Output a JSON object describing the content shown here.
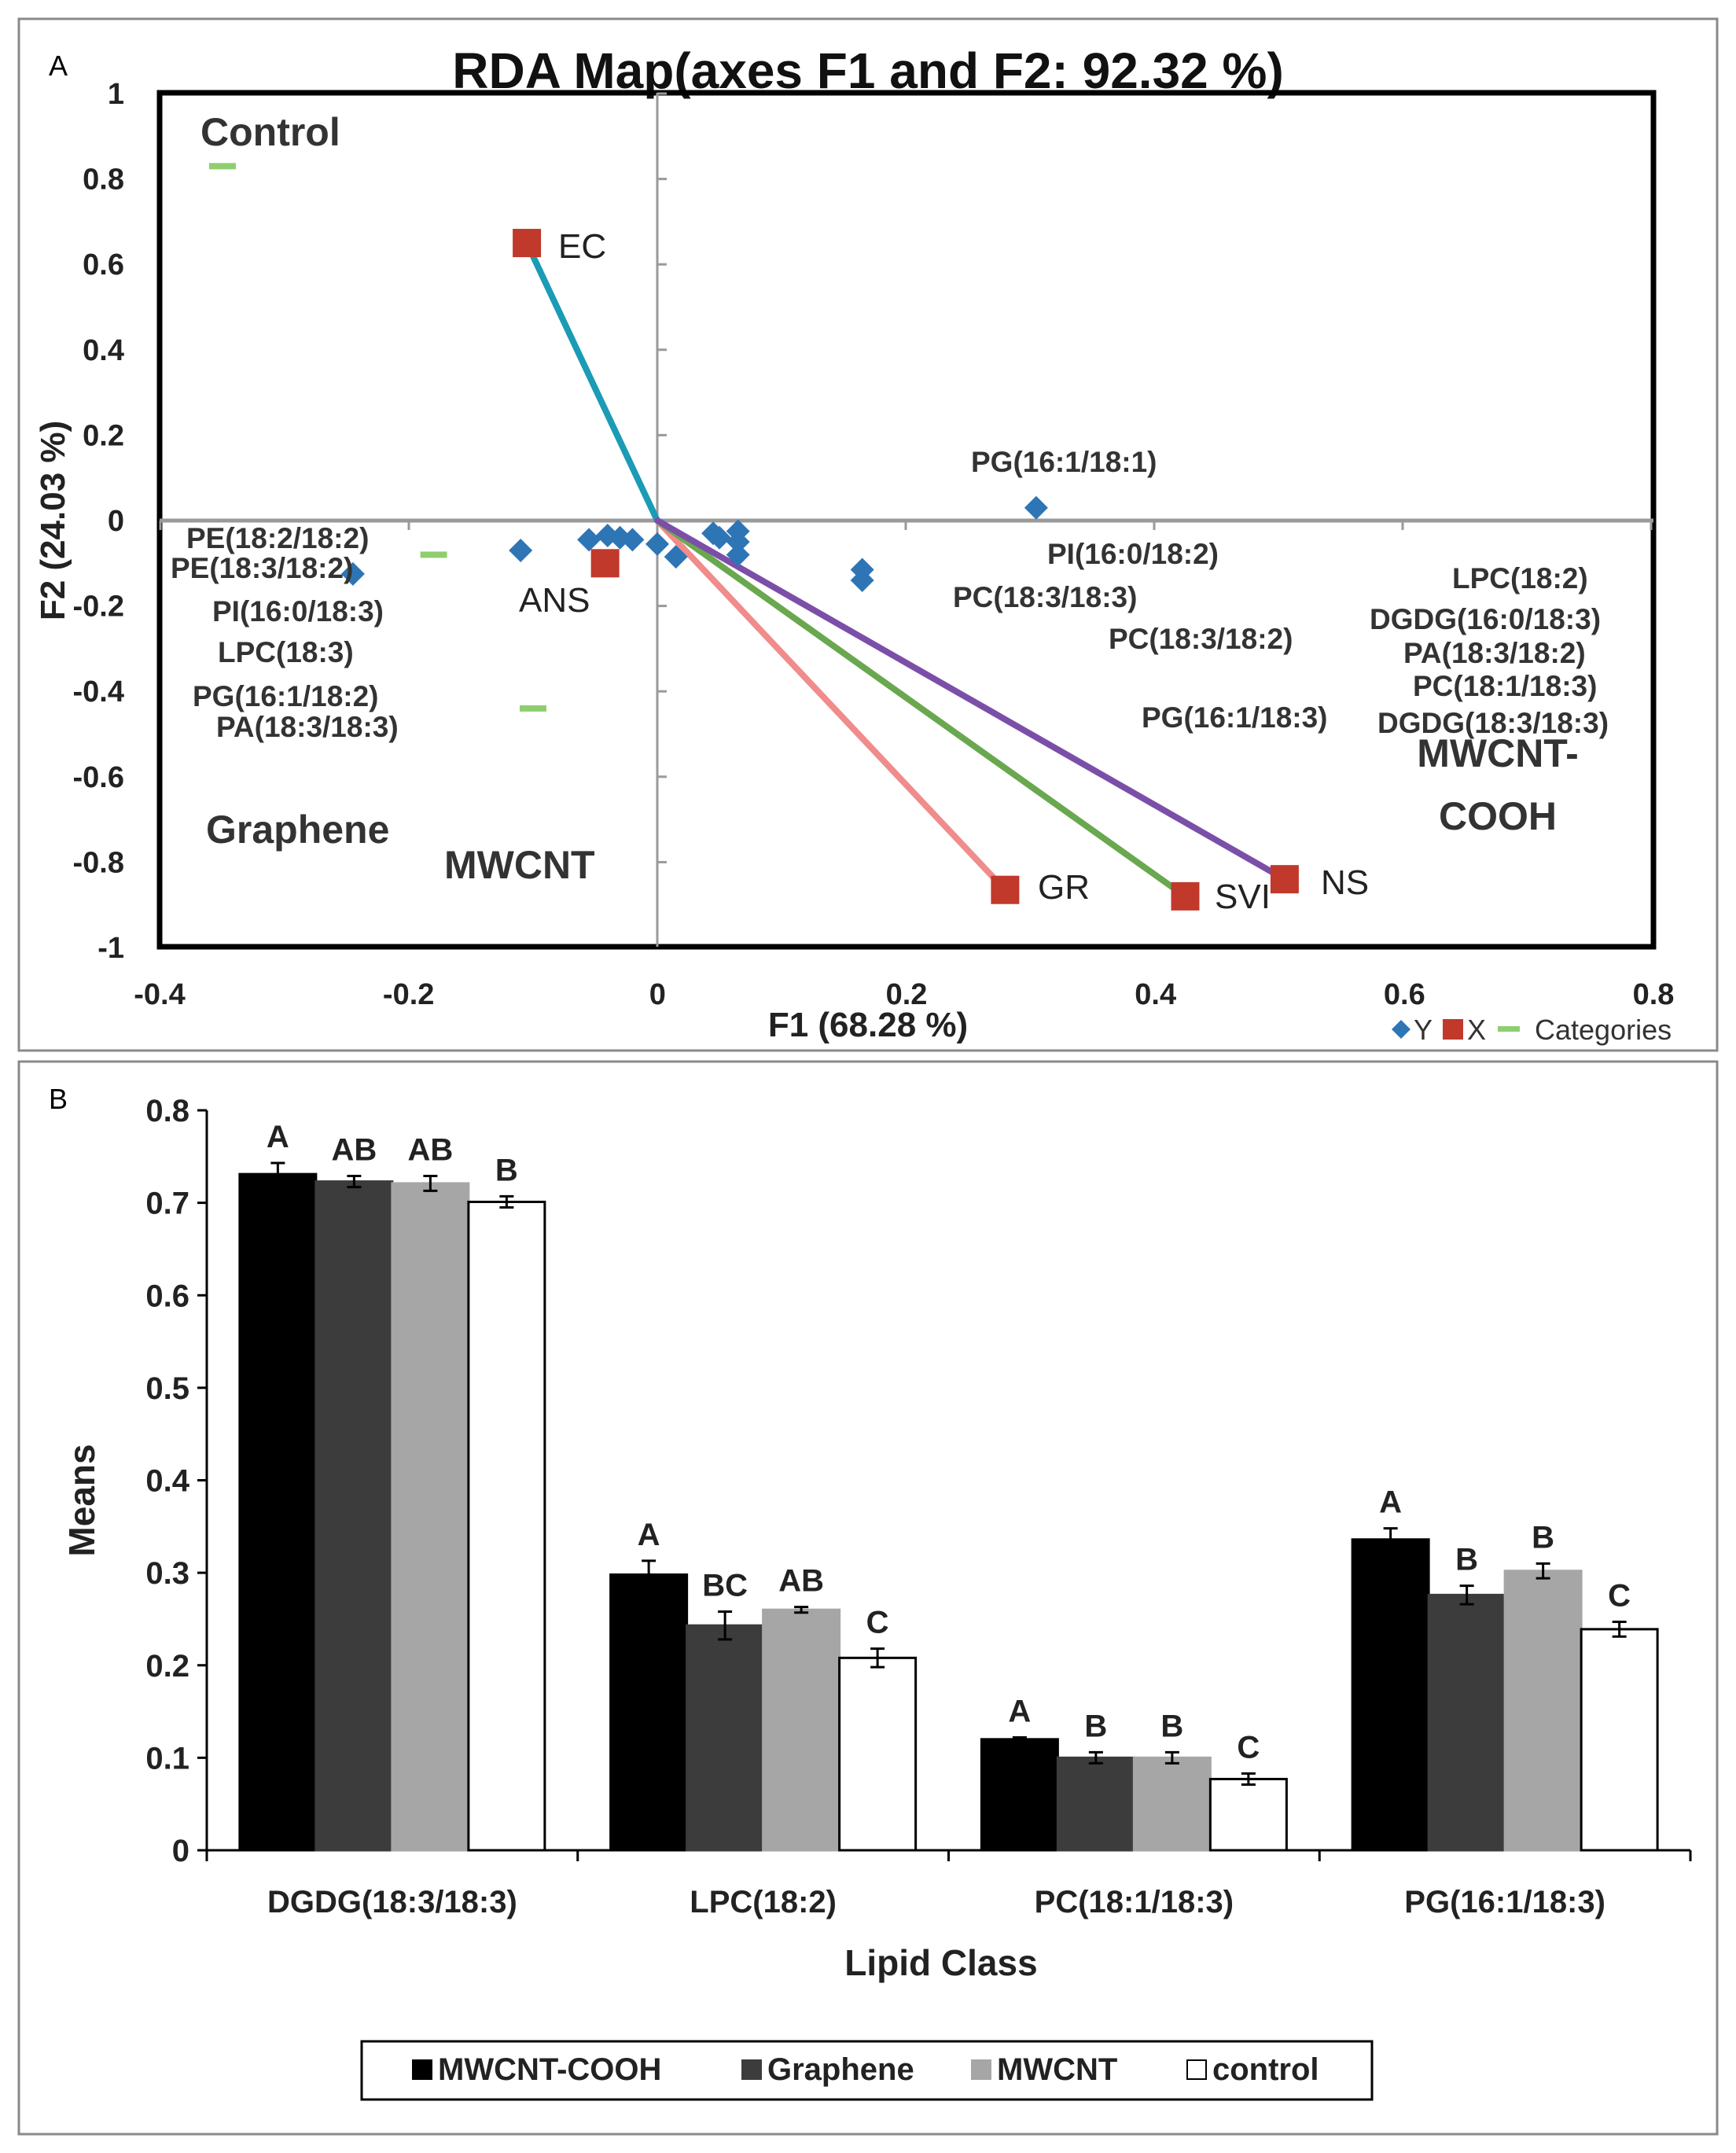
{
  "chart_data": [
    {
      "type": "scatter",
      "panel_label": "A",
      "title": "RDA Map(axes F1 and F2: 92.32 %)",
      "xlabel": "F1 (68.28 %)",
      "ylabel": "F2 (24.03 %)",
      "xlim": [
        -0.4,
        0.8
      ],
      "ylim": [
        -1,
        1
      ],
      "xticks": [
        -0.4,
        -0.2,
        0,
        0.2,
        0.4,
        0.6,
        0.8
      ],
      "yticks": [
        1,
        0.8,
        0.6,
        0.4,
        0.2,
        0,
        -0.2,
        -0.4,
        -0.6,
        -0.8,
        -1
      ],
      "xtick_labels": [
        "-0.4",
        "-0.2",
        "0",
        "0.2",
        "0.4",
        "0.6",
        "0.8"
      ],
      "ytick_labels": [
        "1",
        "0.8",
        "0.6",
        "0.4",
        "0.2",
        "0",
        "-0.2",
        "-0.4",
        "-0.6",
        "-0.8",
        "-1"
      ],
      "legend": [
        {
          "name": "Y",
          "color": "#2e75b6",
          "symbol": "diamond"
        },
        {
          "name": "X",
          "color": "#c0392b",
          "symbol": "square"
        },
        {
          "name": "Categories",
          "color": "#8fce6f",
          "symbol": "dash"
        }
      ],
      "y_points": [
        {
          "x": -0.245,
          "y": -0.125
        },
        {
          "x": -0.11,
          "y": -0.07
        },
        {
          "x": -0.055,
          "y": -0.045
        },
        {
          "x": -0.04,
          "y": -0.035
        },
        {
          "x": -0.03,
          "y": -0.04
        },
        {
          "x": -0.02,
          "y": -0.045
        },
        {
          "x": 0.0,
          "y": -0.055
        },
        {
          "x": 0.015,
          "y": -0.085
        },
        {
          "x": 0.045,
          "y": -0.03
        },
        {
          "x": 0.05,
          "y": -0.04
        },
        {
          "x": 0.065,
          "y": -0.025
        },
        {
          "x": 0.065,
          "y": -0.05
        },
        {
          "x": 0.065,
          "y": -0.08
        },
        {
          "x": 0.165,
          "y": -0.115
        },
        {
          "x": 0.165,
          "y": -0.14
        },
        {
          "x": 0.305,
          "y": 0.03
        }
      ],
      "x_points": [
        {
          "label": "EC",
          "x": -0.105,
          "y": 0.65
        },
        {
          "label": "ANS",
          "x": -0.042,
          "y": -0.1
        },
        {
          "label": "GR",
          "x": 0.28,
          "y": -0.865
        },
        {
          "label": "SVI",
          "x": 0.425,
          "y": -0.88
        },
        {
          "label": "NS",
          "x": 0.505,
          "y": -0.84
        }
      ],
      "vectors": [
        {
          "to": "EC",
          "color": "#1b9bb5"
        },
        {
          "to": "GR",
          "color": "#f08c8c"
        },
        {
          "to": "SVI",
          "color": "#6aa84f"
        },
        {
          "to": "NS",
          "color": "#7b4fa8"
        }
      ],
      "categories_points": [
        {
          "x": -0.35,
          "y": 0.83
        },
        {
          "x": -0.18,
          "y": -0.08
        },
        {
          "x": -0.1,
          "y": -0.44
        }
      ],
      "category_labels": [
        "Control",
        "Graphene",
        "MWCNT",
        "MWCNT-",
        "COOH"
      ],
      "variable_labels": [
        "PG(16:1/18:1)",
        "PI(16:0/18:2)",
        "PC(18:3/18:3)",
        "PC(18:3/18:2)",
        "PG(16:1/18:3)",
        "PE(18:2/18:2)",
        "PE(18:3/18:2)",
        "PI(16:0/18:3)",
        "LPC(18:3)",
        "PG(16:1/18:2)",
        "PA(18:3/18:3)",
        "LPC(18:2)",
        "DGDG(16:0/18:3)",
        "PA(18:3/18:2)",
        "PC(18:1/18:3)",
        "DGDG(18:3/18:3)"
      ]
    },
    {
      "type": "bar",
      "panel_label": "B",
      "xlabel": "Lipid Class",
      "ylabel": "Means",
      "ylim": [
        0,
        0.8
      ],
      "yticks": [
        0,
        0.1,
        0.2,
        0.3,
        0.4,
        0.5,
        0.6,
        0.7,
        0.8
      ],
      "ytick_labels": [
        "0",
        "0.1",
        "0.2",
        "0.3",
        "0.4",
        "0.5",
        "0.6",
        "0.7",
        "0.8"
      ],
      "categories": [
        "DGDG(18:3/18:3)",
        "LPC(18:2)",
        "PC(18:1/18:3)",
        "PG(16:1/18:3)"
      ],
      "series": [
        {
          "name": "MWCNT-COOH",
          "color": "#000000",
          "values": [
            0.731,
            0.298,
            0.12,
            0.336
          ],
          "errors": [
            0.012,
            0.015,
            0.002,
            0.012
          ],
          "letters": [
            "A",
            "A",
            "A",
            "A"
          ]
        },
        {
          "name": "Graphene",
          "color": "#3c3c3c",
          "values": [
            0.723,
            0.243,
            0.1,
            0.276
          ],
          "errors": [
            0.006,
            0.015,
            0.006,
            0.01
          ],
          "letters": [
            "AB",
            "BC",
            "B",
            "B"
          ]
        },
        {
          "name": "MWCNT",
          "color": "#a6a6a6",
          "values": [
            0.721,
            0.26,
            0.1,
            0.302
          ],
          "errors": [
            0.008,
            0.003,
            0.006,
            0.008
          ],
          "letters": [
            "AB",
            "AB",
            "B",
            "B"
          ]
        },
        {
          "name": "control",
          "color": "#ffffff",
          "values": [
            0.701,
            0.208,
            0.077,
            0.239
          ],
          "errors": [
            0.006,
            0.01,
            0.006,
            0.008
          ],
          "letters": [
            "B",
            "C",
            "C",
            "C"
          ]
        }
      ]
    }
  ]
}
